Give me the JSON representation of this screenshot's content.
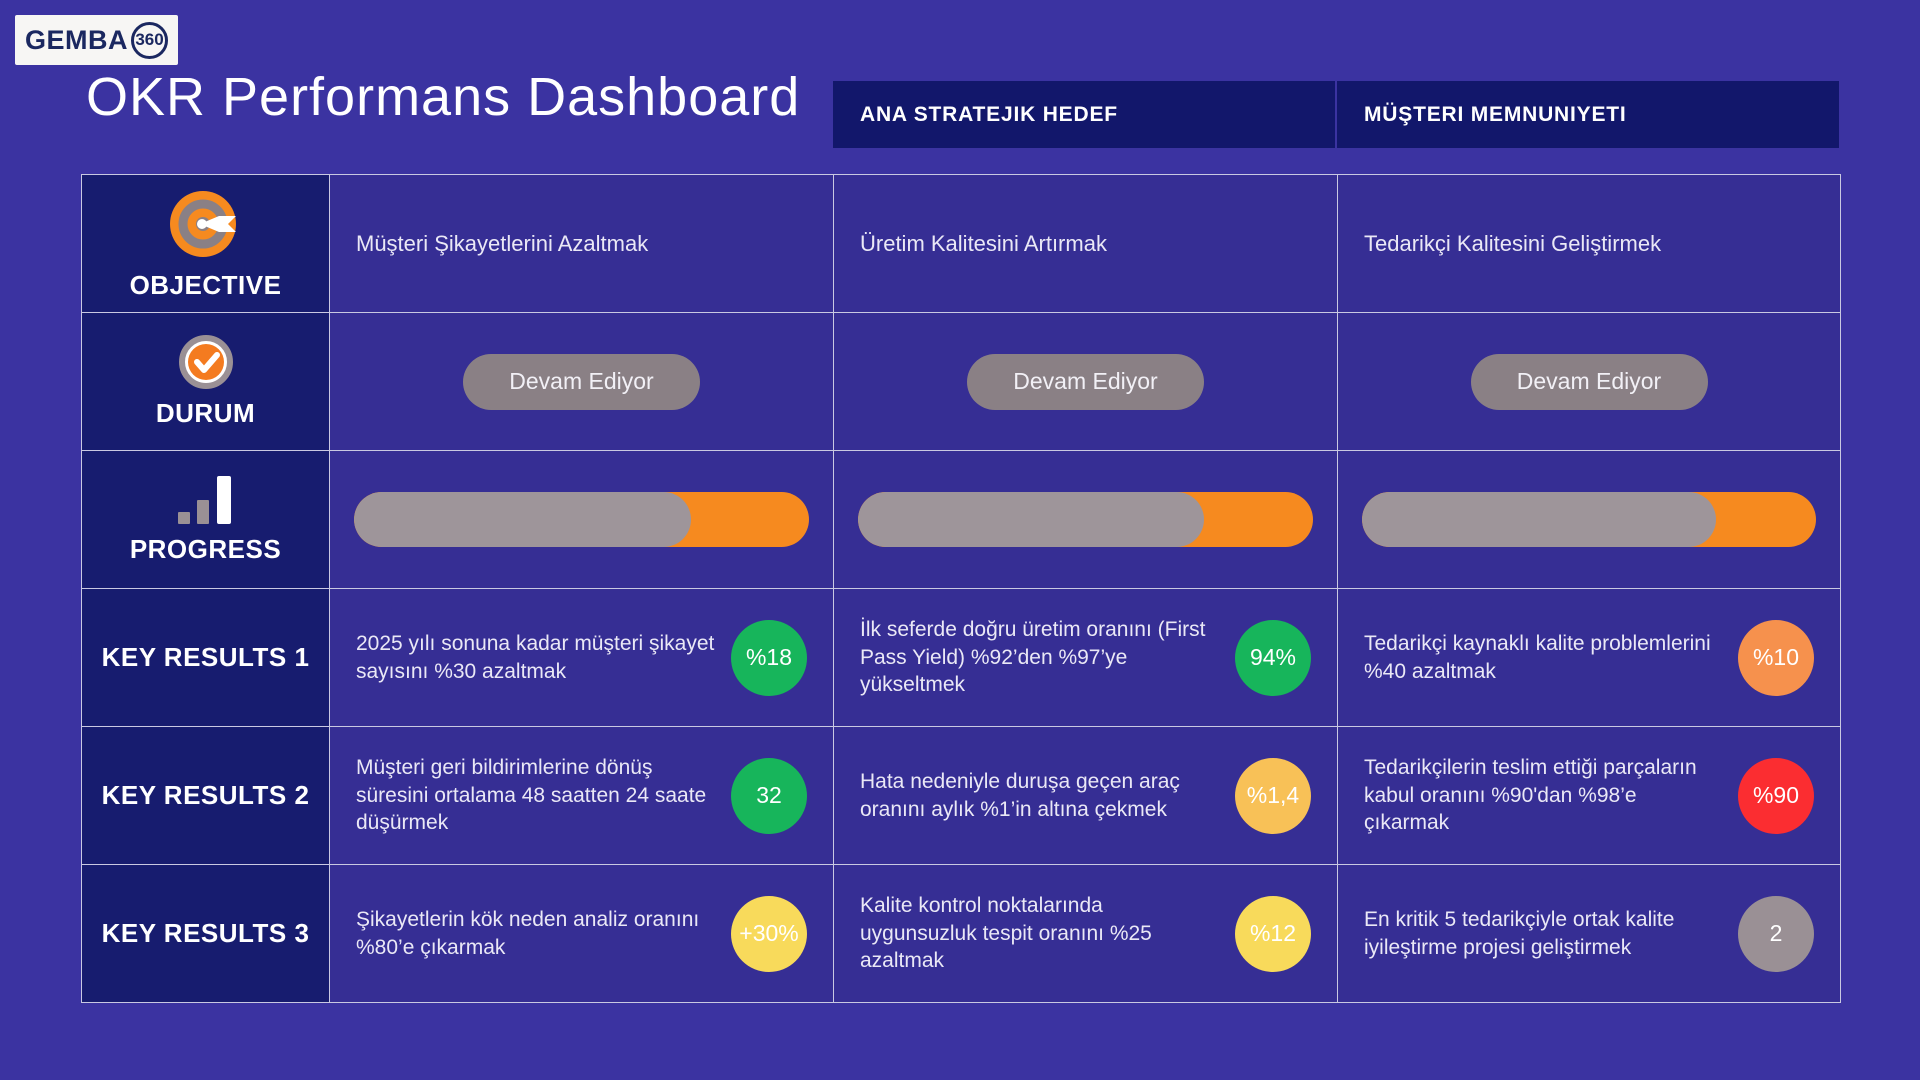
{
  "logo": {
    "text": "GEMBA",
    "badge": "360"
  },
  "title": "OKR Performans Dashboard",
  "column_headers": [
    {
      "label": "ANA STRATEJIK HEDEF"
    },
    {
      "label": "MÜŞTERI MEMNUNIYETI"
    }
  ],
  "objective_row": {
    "label": "OBJECTIVE",
    "icon": "target-icon",
    "cells": [
      "Müşteri Şikayetlerini Azaltmak",
      "Üretim Kalitesini Artırmak",
      "Tedarikçi Kalitesini Geliştirmek"
    ]
  },
  "status_row": {
    "label": "DURUM",
    "icon": "check-circle-icon",
    "badges": [
      "Devam Ediyor",
      "Devam Ediyor",
      "Devam Ediyor"
    ]
  },
  "progress_row": {
    "label": "PROGRESS",
    "icon": "bar-chart-icon",
    "bars": [
      {
        "gray_pct": 74
      },
      {
        "gray_pct": 76
      },
      {
        "gray_pct": 78
      }
    ]
  },
  "key_results_rows": [
    {
      "label": "KEY RESULTS 1",
      "cells": [
        {
          "text": "2025 yılı sonuna kadar müşteri şikayet sayısını %30 azaltmak",
          "badge": "%18",
          "badge_color": "#17B55B"
        },
        {
          "text": "İlk seferde doğru üretim oranını (First Pass Yield) %92’den %97’ye yükseltmek",
          "badge": "94%",
          "badge_color": "#17B55B"
        },
        {
          "text": "Tedarikçi kaynaklı kalite problemlerini %40 azaltmak",
          "badge": "%10",
          "badge_color": "#F6914D"
        }
      ]
    },
    {
      "label": "KEY RESULTS 2",
      "cells": [
        {
          "text": "Müşteri geri bildirimlerine dönüş süresini ortalama 48 saatten 24 saate düşürmek",
          "badge": "32",
          "badge_color": "#17B55B"
        },
        {
          "text": "Hata nedeniyle duruşa geçen araç oranını aylık %1’in altına çekmek",
          "badge": "%1,4",
          "badge_color": "#F8C157"
        },
        {
          "text": "Tedarikçilerin teslim ettiği parçaların kabul oranını %90'dan %98’e çıkarmak",
          "badge": "%90",
          "badge_color": "#FB2D31"
        }
      ]
    },
    {
      "label": "KEY RESULTS 3",
      "cells": [
        {
          "text": "Şikayetlerin kök neden analiz oranını %80’e çıkarmak",
          "badge": "+30%",
          "badge_color": "#F8DA5B"
        },
        {
          "text": "Kalite kontrol noktalarında uygunsuzluk tespit oranını %25 azaltmak",
          "badge": "%12",
          "badge_color": "#F8DA5B"
        },
        {
          "text": "En kritik 5 tedarikçiyle ortak kalite iyileştirme projesi geliştirmek",
          "badge": "2",
          "badge_color": "#9A9095"
        }
      ]
    }
  ],
  "colors": {
    "page_bg": "#3B33A1",
    "cell_bg": "#362E94",
    "label_bg": "#171C6F",
    "header_bg": "#12176B",
    "accent_orange": "#F68A1F",
    "progress_track_gray": "#9E959A",
    "status_pill_gray": "#8A8085",
    "green": "#17B55B",
    "light_orange": "#F6914D",
    "amber": "#F8C157",
    "red": "#FB2D31",
    "yellow": "#F8DA5B",
    "neutral_gray": "#9A9095"
  }
}
